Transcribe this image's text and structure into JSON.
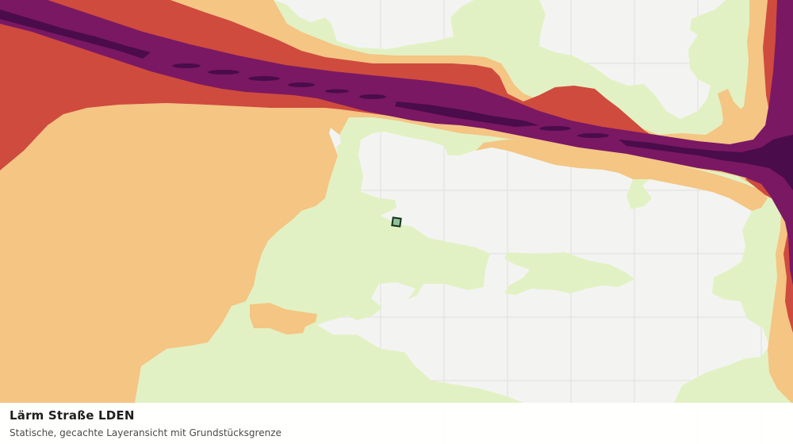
{
  "layer": {
    "title": "Lärm Straße LDEN",
    "subtitle": "Statische, gecachte Layeransicht mit Grundstücksgrenze"
  },
  "colors": {
    "background": "#f3f4f2",
    "grid": "#dfe1df",
    "noise_band_1": "#e2f1c3",
    "noise_band_2": "#f4c583",
    "noise_band_3": "#cf4b3d",
    "noise_band_4": "#7a1864",
    "noise_band_5": "#4a0c4b",
    "parcel_fill": "#8fc29a",
    "parcel_outline": "#14321c"
  }
}
